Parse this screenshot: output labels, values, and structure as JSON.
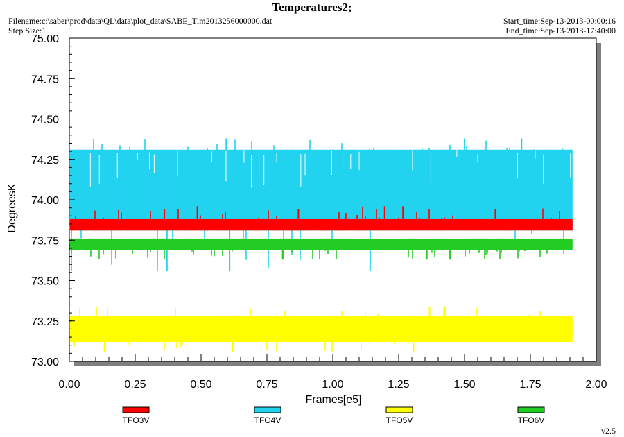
{
  "header": {
    "title": "Temperatures2;",
    "filename": "Filename:c:\\saber\\prod\\data\\QL\\data\\plot_data\\SABE_Tlm2013256000000.dat",
    "step_size": "Step Size:1",
    "start_time": "Start_time:Sep-13-2013-00:00:16",
    "end_time": "End_time:Sep-13-2013-17:40:00"
  },
  "footer": {
    "version": "v2.5"
  },
  "chart_data": {
    "type": "line",
    "title": "Temperatures2;",
    "xlabel": "Frames[e5]",
    "ylabel": "DegreesK",
    "xlim": [
      0.0,
      2.0
    ],
    "ylim": [
      73.0,
      75.0
    ],
    "x_ticks": [
      "0.00",
      "0.25",
      "0.50",
      "0.75",
      "1.00",
      "1.25",
      "1.50",
      "1.75",
      "2.00"
    ],
    "y_ticks": [
      "73.00",
      "73.25",
      "73.50",
      "73.75",
      "74.00",
      "74.25",
      "74.50",
      "74.75",
      "75.00"
    ],
    "grid": false,
    "legend_position": "bottom",
    "x_range_of_data": [
      0.0,
      1.91
    ],
    "series": [
      {
        "name": "TFO3V",
        "color": "#ff0000",
        "base_values": [
          73.81,
          73.88
        ],
        "spike_values": [
          73.94,
          73.96
        ]
      },
      {
        "name": "TFO4V",
        "color": "#22d3f0",
        "base_values": [
          73.81,
          74.31
        ],
        "spike_values": [
          74.38,
          73.56
        ]
      },
      {
        "name": "TFO5V",
        "color": "#ffff00",
        "base_values": [
          73.12,
          73.28
        ],
        "spike_values": [
          73.34,
          73.06
        ]
      },
      {
        "name": "TFO6V",
        "color": "#22cc22",
        "base_values": [
          73.69,
          73.76
        ],
        "spike_values": [
          73.63
        ]
      }
    ]
  }
}
